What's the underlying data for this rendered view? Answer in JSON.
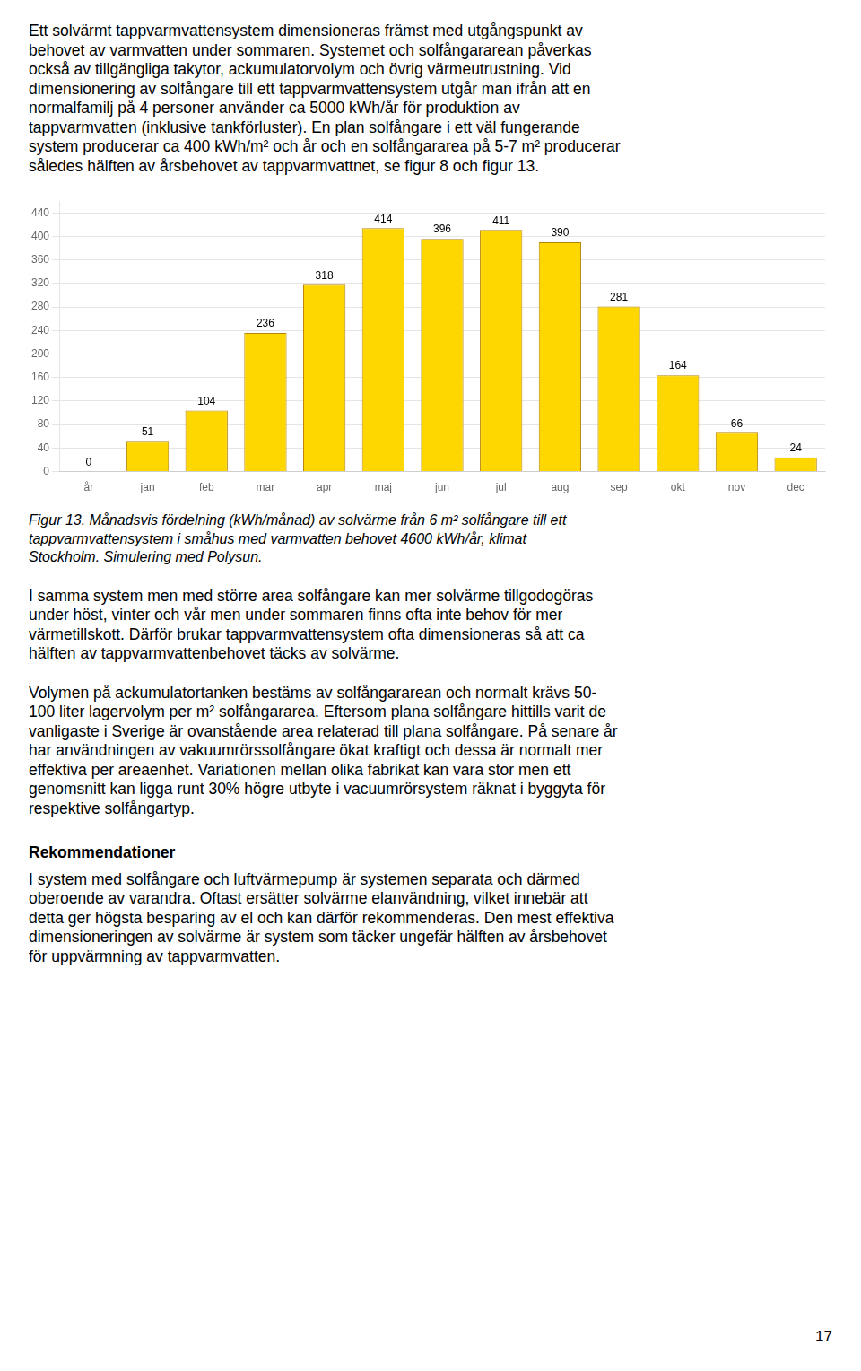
{
  "page": {
    "para1": [
      "Ett solvärmt tappvarmvattensystem dimensioneras främst med utgångspunkt av",
      "behovet av varmvatten under sommaren. Systemet och solfångararean påverkas",
      "också av tillgängliga takytor, ackumulatorvolym och övrig värmeutrustning. Vid",
      "dimensionering av solfångare till ett tappvarmvattensystem utgår man ifrån att en",
      "normalfamilj på 4 personer använder ca 5000 kWh/år för produktion av",
      "tappvarmvatten (inklusive tankförluster). En plan solfångare i ett väl fungerande",
      "system producerar ca 400 kWh/m² och år och en solfångararea på 5-7 m² producerar",
      "således hälften av årsbehovet av tappvarmvattnet, se figur 8 och figur 13."
    ],
    "caption": [
      "Figur 13. Månadsvis fördelning (kWh/månad) av solvärme från 6 m² solfångare till ett",
      "tappvarmvattensystem i småhus med varmvatten behovet 4600 kWh/år, klimat",
      "Stockholm. Simulering med Polysun."
    ],
    "para2": [
      "I samma system men med större area solfångare kan mer solvärme tillgodogöras",
      "under höst, vinter och vår men under sommaren finns ofta inte behov för mer",
      "värmetillskott. Därför brukar tappvarmvattensystem ofta dimensioneras så att ca",
      "hälften av tappvarmvattenbehovet täcks av solvärme."
    ],
    "para3": [
      "Volymen på ackumulatortanken bestäms av solfångararean och normalt krävs 50-",
      "100 liter lagervolym per m² solfångararea. Eftersom plana solfångare hittills varit de",
      "vanligaste i Sverige är ovanstående area relaterad till plana solfångare. På senare år",
      "har användningen av vakuumrörssolfångare ökat kraftigt och dessa är normalt mer",
      "effektiva per areaenhet. Variationen mellan olika fabrikat kan vara stor men ett",
      "genomsnitt kan ligga runt 30% högre utbyte i vacuumrörsystem räknat i byggyta för",
      "respektive solfångartyp."
    ],
    "section_header": "Rekommendationer",
    "para4": [
      "I system med solfångare och luftvärmepump är systemen separata och därmed",
      "oberoende av varandra. Oftast ersätter solvärme elanvändning, vilket innebär att",
      "detta ger högsta besparing av el och kan därför rekommenderas. Den mest effektiva",
      "dimensioneringen av solvärme är system som täcker ungefär hälften av årsbehovet",
      "för uppvärmning av tappvarmvatten."
    ],
    "page_number": "17"
  },
  "chart_data": {
    "type": "bar",
    "categories": [
      "år",
      "jan",
      "feb",
      "mar",
      "apr",
      "maj",
      "jun",
      "jul",
      "aug",
      "sep",
      "okt",
      "nov",
      "dec"
    ],
    "values": [
      0,
      51,
      104,
      236,
      318,
      414,
      396,
      411,
      390,
      281,
      164,
      66,
      24
    ],
    "color": "#FFD700",
    "ylim": [
      0,
      460
    ],
    "yticks": [
      0,
      40,
      80,
      120,
      160,
      200,
      240,
      280,
      320,
      360,
      400,
      440
    ],
    "grid": true,
    "data_labels": true
  }
}
